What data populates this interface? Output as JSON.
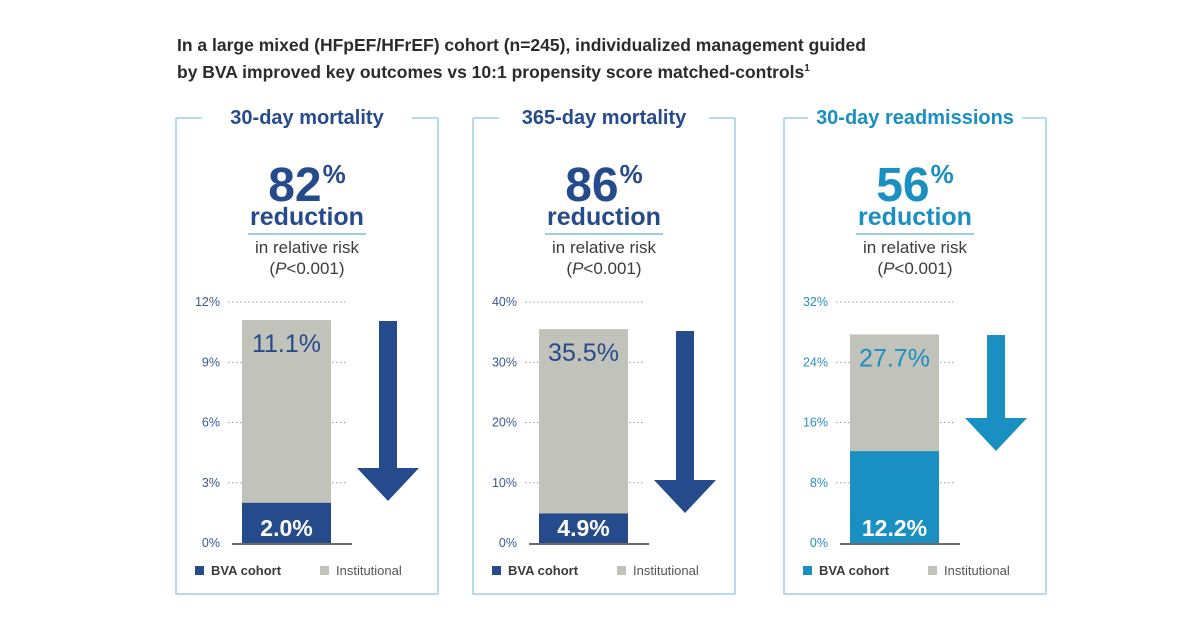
{
  "heading": {
    "line1": "In a large mixed (HFpEF/HFrEF) cohort (n=245), individualized management guided",
    "line2": "by BVA improved key outcomes vs 10:1 propensity score matched-controls",
    "footnote": "1"
  },
  "colors": {
    "navy": "#264b8c",
    "teal": "#1a8fc1",
    "gray": "#c1c2ba",
    "frame": "#9ecfe6",
    "tick_navy": "#3a5a96",
    "tick_teal": "#2a8dbd"
  },
  "chart_data": [
    {
      "type": "bar",
      "title": "30-day mortality",
      "headline_value": "82",
      "headline_unit": "%",
      "headline_label": "reduction",
      "sub_line1": "in relative risk",
      "sub_p": "P",
      "sub_rest": "<0.001",
      "accent": "#264b8c",
      "yticks": [
        "0%",
        "3%",
        "6%",
        "9%",
        "12%"
      ],
      "ylim": [
        0,
        12
      ],
      "series": [
        {
          "name": "Institutional",
          "value": 11.1,
          "label": "11.1%"
        },
        {
          "name": "BVA cohort",
          "value": 2.0,
          "label": "2.0%"
        }
      ],
      "legend": [
        "BVA cohort",
        "Institutional"
      ]
    },
    {
      "type": "bar",
      "title": "365-day mortality",
      "headline_value": "86",
      "headline_unit": "%",
      "headline_label": "reduction",
      "sub_line1": "in relative risk",
      "sub_p": "P",
      "sub_rest": "<0.001",
      "accent": "#264b8c",
      "yticks": [
        "0%",
        "10%",
        "20%",
        "30%",
        "40%"
      ],
      "ylim": [
        0,
        40
      ],
      "series": [
        {
          "name": "Institutional",
          "value": 35.5,
          "label": "35.5%"
        },
        {
          "name": "BVA cohort",
          "value": 4.9,
          "label": "4.9%"
        }
      ],
      "legend": [
        "BVA cohort",
        "Institutional"
      ]
    },
    {
      "type": "bar",
      "title": "30-day readmissions",
      "headline_value": "56",
      "headline_unit": "%",
      "headline_label": "reduction",
      "sub_line1": "in relative risk",
      "sub_p": "P",
      "sub_rest": "<0.001",
      "accent": "#1a8fc1",
      "yticks": [
        "0%",
        "8%",
        "16%",
        "24%",
        "32%"
      ],
      "ylim": [
        0,
        32
      ],
      "series": [
        {
          "name": "Institutional",
          "value": 27.7,
          "label": "27.7%"
        },
        {
          "name": "BVA cohort",
          "value": 12.2,
          "label": "12.2%"
        }
      ],
      "legend": [
        "BVA cohort",
        "Institutional"
      ]
    }
  ]
}
